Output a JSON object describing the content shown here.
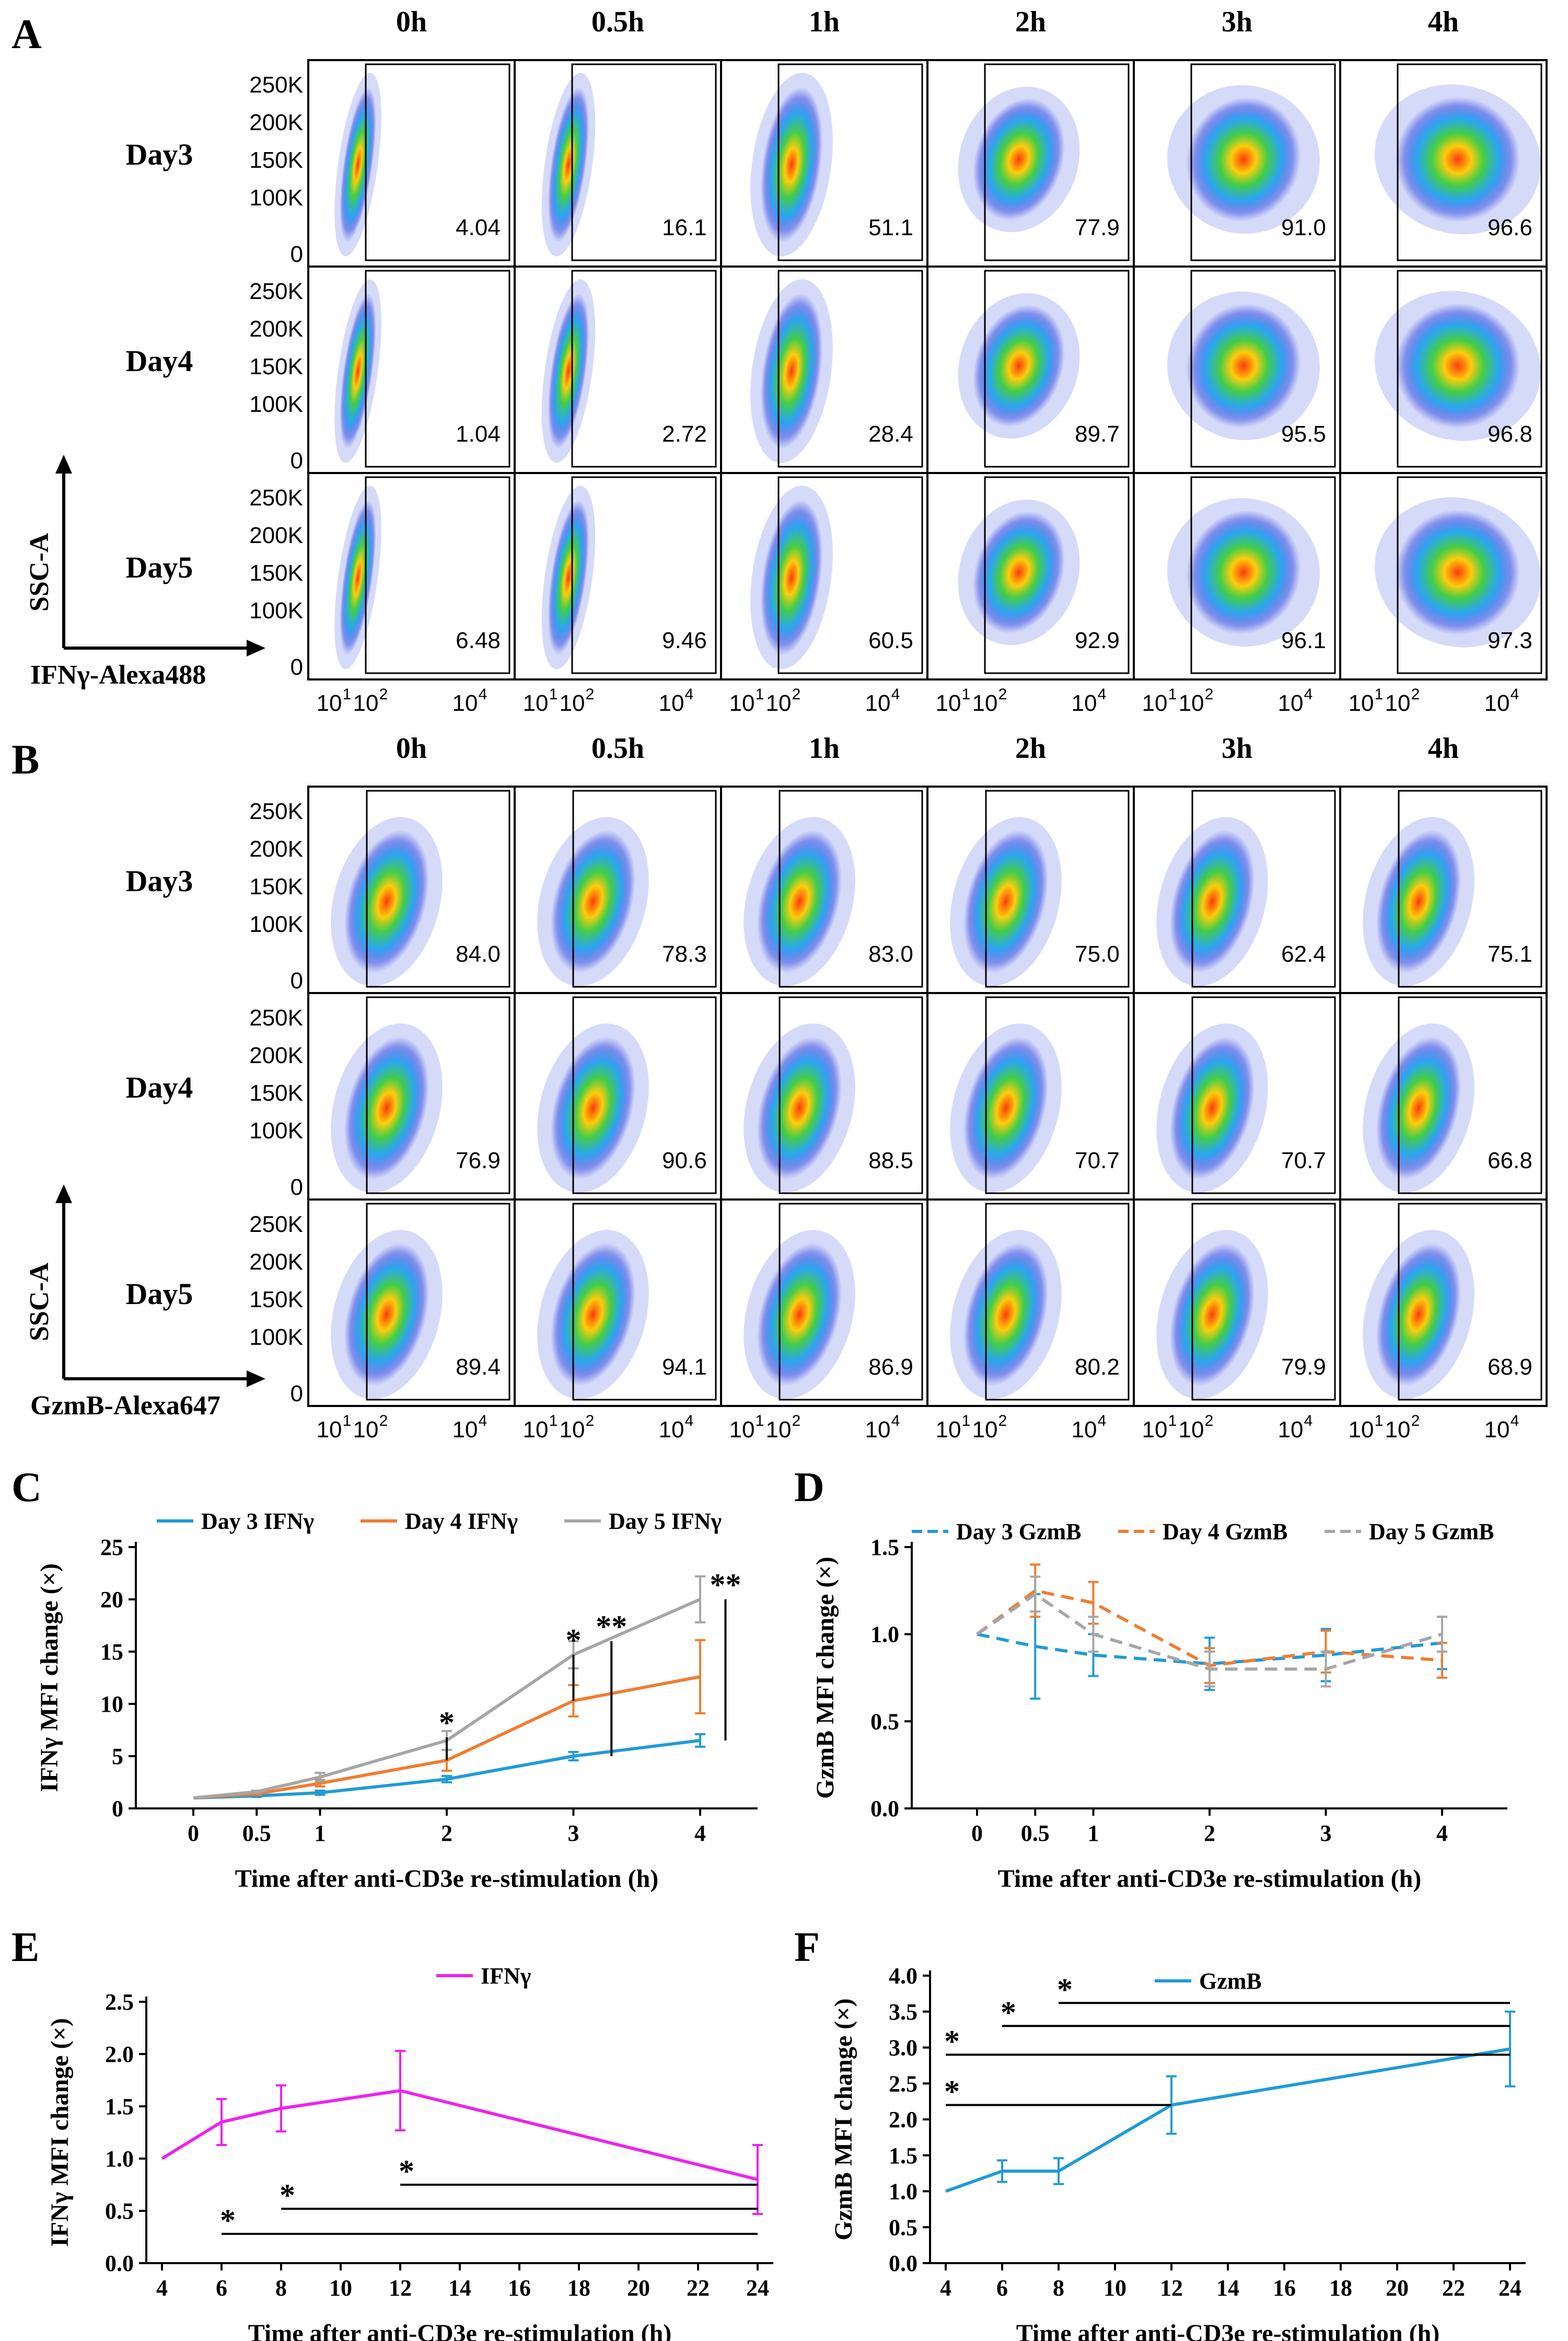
{
  "panels": {
    "A": {
      "letter": "A",
      "columns": [
        "0h",
        "0.5h",
        "1h",
        "2h",
        "3h",
        "4h"
      ],
      "rows": [
        {
          "label": "Day3",
          "values": [
            "4.04",
            "16.1",
            "51.1",
            "77.9",
            "91.0",
            "96.6"
          ]
        },
        {
          "label": "Day4",
          "values": [
            "1.04",
            "2.72",
            "28.4",
            "89.7",
            "95.5",
            "96.8"
          ]
        },
        {
          "label": "Day5",
          "values": [
            "6.48",
            "9.46",
            "60.5",
            "92.9",
            "96.1",
            "97.3"
          ]
        }
      ],
      "y_axis_label": "SSC-A",
      "x_axis_label": "IFNγ-Alexa488"
    },
    "B": {
      "letter": "B",
      "columns": [
        "0h",
        "0.5h",
        "1h",
        "2h",
        "3h",
        "4h"
      ],
      "rows": [
        {
          "label": "Day3",
          "values": [
            "84.0",
            "78.3",
            "83.0",
            "75.0",
            "62.4",
            "75.1"
          ]
        },
        {
          "label": "Day4",
          "values": [
            "76.9",
            "90.6",
            "88.5",
            "70.7",
            "70.7",
            "66.8"
          ]
        },
        {
          "label": "Day5",
          "values": [
            "89.4",
            "94.1",
            "86.9",
            "80.2",
            "79.9",
            "68.9"
          ]
        }
      ],
      "y_axis_label": "SSC-A",
      "x_axis_label": "GzmB-Alexa647"
    },
    "flow_axes": {
      "y_ticks": [
        "250K",
        "200K",
        "150K",
        "100K",
        "0"
      ],
      "x_tick_base": [
        "10",
        "10",
        "10"
      ],
      "x_tick_exps": [
        "1",
        "2",
        "4"
      ]
    },
    "C": {
      "letter": "C"
    },
    "D": {
      "letter": "D"
    },
    "E": {
      "letter": "E"
    },
    "F": {
      "letter": "F"
    }
  },
  "chart_data": [
    {
      "id": "C",
      "type": "line",
      "x": [
        0,
        0.5,
        1,
        2,
        3,
        4
      ],
      "x_tick_labels": [
        "0",
        "0.5",
        "1",
        "2",
        "3",
        "4"
      ],
      "series": [
        {
          "name": "Day 3 IFNγ",
          "color": "#1f9bd7",
          "dash": false,
          "values": [
            1,
            1.2,
            1.5,
            2.8,
            5.0,
            6.5
          ],
          "errors": [
            0,
            0.1,
            0.2,
            0.3,
            0.4,
            0.6
          ]
        },
        {
          "name": "Day 4 IFNγ",
          "color": "#ef7d31",
          "dash": false,
          "values": [
            1,
            1.4,
            2.4,
            4.6,
            10.3,
            12.6
          ],
          "errors": [
            0,
            0.1,
            0.3,
            1.0,
            1.5,
            3.5
          ]
        },
        {
          "name": "Day 5 IFNγ",
          "color": "#a6a6a6",
          "dash": false,
          "values": [
            1,
            1.6,
            3.0,
            6.5,
            14.7,
            20.0
          ],
          "errors": [
            0,
            0.1,
            0.4,
            0.9,
            1.3,
            2.2
          ]
        }
      ],
      "ylabel": "IFNγ MFI change (×)",
      "xlabel": "Time after anti-CD3e re-stimulation (h)",
      "ylim": [
        0,
        25
      ],
      "y_ticks": [
        0,
        5,
        10,
        15,
        20,
        25
      ],
      "annotations": [
        "*",
        "*",
        "**",
        "**"
      ]
    },
    {
      "id": "D",
      "type": "line",
      "x": [
        0,
        0.5,
        1,
        2,
        3,
        4
      ],
      "x_tick_labels": [
        "0",
        "0.5",
        "1",
        "2",
        "3",
        "4"
      ],
      "series": [
        {
          "name": "Day 3 GzmB",
          "color": "#1f9bd7",
          "dash": true,
          "values": [
            1.0,
            0.93,
            0.88,
            0.83,
            0.88,
            0.95
          ],
          "errors": [
            0,
            0.3,
            0.12,
            0.15,
            0.15,
            0.15
          ]
        },
        {
          "name": "Day 4 GzmB",
          "color": "#ef7d31",
          "dash": true,
          "values": [
            1.0,
            1.25,
            1.18,
            0.82,
            0.9,
            0.85
          ],
          "errors": [
            0,
            0.15,
            0.12,
            0.1,
            0.12,
            0.1
          ]
        },
        {
          "name": "Day 5 GzmB",
          "color": "#a6a6a6",
          "dash": true,
          "values": [
            1.0,
            1.23,
            1.0,
            0.8,
            0.8,
            1.0
          ],
          "errors": [
            0,
            0.1,
            0.1,
            0.1,
            0.1,
            0.1
          ]
        }
      ],
      "ylabel": "GzmB MFI change (×)",
      "xlabel": "Time after anti-CD3e re-stimulation (h)",
      "ylim": [
        0,
        1.5
      ],
      "y_ticks": [
        0,
        0.5,
        1.0,
        1.5
      ],
      "y_tick_labels": [
        "0.0",
        "0.5",
        "1.0",
        "1.5"
      ]
    },
    {
      "id": "E",
      "type": "line",
      "x": [
        4,
        6,
        8,
        12,
        24
      ],
      "x_tick_labels": [
        "4",
        "6",
        "8",
        "10",
        "12",
        "14",
        "16",
        "18",
        "20",
        "22",
        "24"
      ],
      "x_ticks": [
        4,
        6,
        8,
        10,
        12,
        14,
        16,
        18,
        20,
        22,
        24
      ],
      "series": [
        {
          "name": "IFNγ",
          "color": "#ee22ee",
          "dash": false,
          "values": [
            1.0,
            1.35,
            1.48,
            1.65,
            0.8
          ],
          "errors": [
            0,
            0.22,
            0.22,
            0.38,
            0.33
          ]
        }
      ],
      "ylabel": "IFNγ MFI change (×)",
      "xlabel": "Time after anti-CD3e re-stimulation (h)",
      "ylim": [
        0,
        2.5
      ],
      "y_ticks": [
        0,
        0.5,
        1.0,
        1.5,
        2.0,
        2.5
      ],
      "y_tick_labels": [
        "0.0",
        "0.5",
        "1.0",
        "1.5",
        "2.0",
        "2.5"
      ],
      "annotations": [
        "*",
        "*",
        "*"
      ]
    },
    {
      "id": "F",
      "type": "line",
      "x": [
        4,
        6,
        8,
        12,
        24
      ],
      "x_tick_labels": [
        "4",
        "6",
        "8",
        "10",
        "12",
        "14",
        "16",
        "18",
        "20",
        "22",
        "24"
      ],
      "x_ticks": [
        4,
        6,
        8,
        10,
        12,
        14,
        16,
        18,
        20,
        22,
        24
      ],
      "series": [
        {
          "name": "GzmB",
          "color": "#1f9bd7",
          "dash": false,
          "values": [
            1.0,
            1.28,
            1.28,
            2.2,
            2.98
          ],
          "errors": [
            0,
            0.15,
            0.18,
            0.4,
            0.52
          ]
        }
      ],
      "ylabel": "GzmB MFI change (×)",
      "xlabel": "Time after anti-CD3e re-stimulation (h)",
      "ylim": [
        0,
        4
      ],
      "y_ticks": [
        0,
        0.5,
        1,
        1.5,
        2,
        2.5,
        3,
        3.5,
        4
      ],
      "y_tick_labels": [
        "0.0",
        "0.5",
        "1.0",
        "1.5",
        "2.0",
        "2.5",
        "3.0",
        "3.5",
        "4.0"
      ],
      "annotations": [
        "*",
        "*",
        "*",
        "*"
      ]
    }
  ]
}
